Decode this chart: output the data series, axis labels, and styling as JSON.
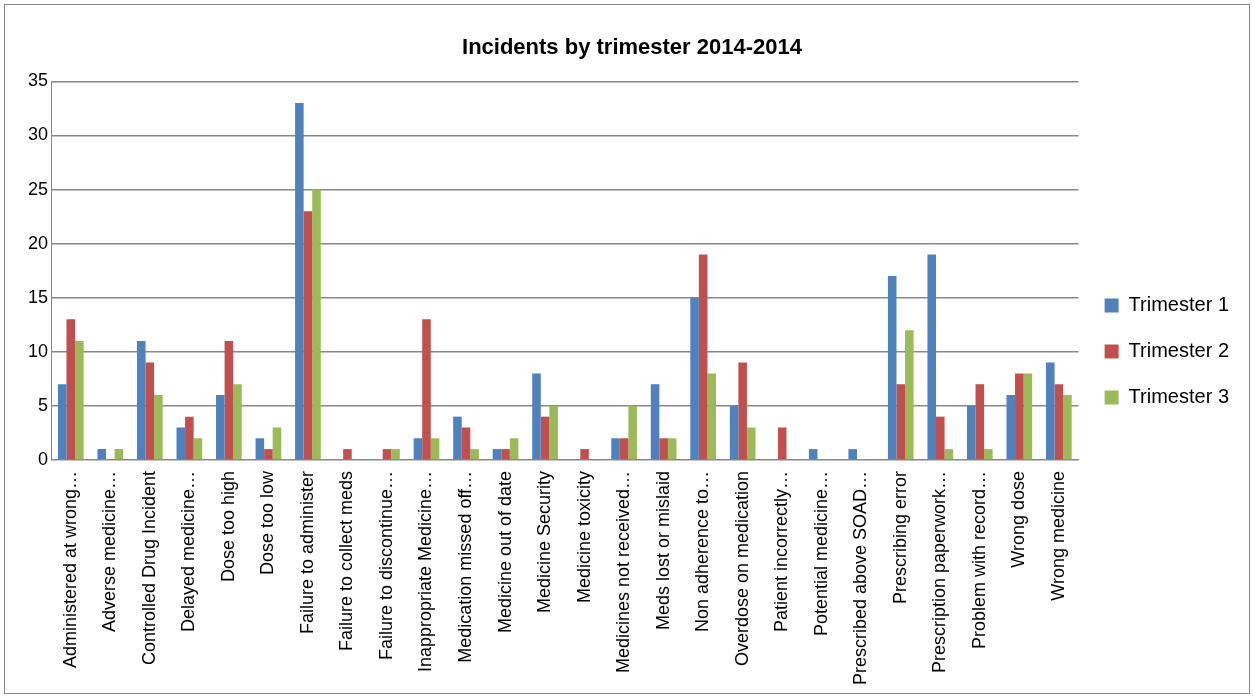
{
  "chart_data": {
    "type": "bar",
    "title": "Incidents by trimester 2014-2014",
    "categories": [
      "Administered at wrong…",
      "Adverse medicine…",
      "Controlled Drug Incident",
      "Delayed medicine…",
      "Dose too high",
      "Dose too low",
      "Failure to administer",
      "Failure to collect meds",
      "Failure to discontinue…",
      "Inappropriate Medicine…",
      "Medication missed off…",
      "Medicine out of date",
      "Medicine Security",
      "Medicine toxicity",
      "Medicines not received…",
      "Meds lost or mislaid",
      "Non adherence to…",
      "Overdose on medication",
      "Patient incorrectly…",
      "Potential medicine…",
      "Prescribed above SOAD…",
      "Prescribing error",
      "Prescription paperwork…",
      "Problem with record…",
      "Wrong dose",
      "Wrong medicine"
    ],
    "series": [
      {
        "name": "Trimester 1",
        "color": "#4f81bd",
        "values": [
          7,
          1,
          11,
          3,
          6,
          2,
          33,
          0,
          0,
          2,
          4,
          1,
          8,
          0,
          2,
          7,
          15,
          5,
          0,
          1,
          1,
          17,
          19,
          5,
          6,
          9
        ]
      },
      {
        "name": "Trimester 2",
        "color": "#c0504d",
        "values": [
          13,
          0,
          9,
          4,
          11,
          1,
          23,
          1,
          1,
          13,
          3,
          1,
          4,
          1,
          2,
          2,
          19,
          9,
          3,
          0,
          0,
          7,
          4,
          7,
          8,
          7
        ]
      },
      {
        "name": "Trimester 3",
        "color": "#9bbb59",
        "values": [
          11,
          1,
          6,
          2,
          7,
          3,
          25,
          0,
          1,
          2,
          1,
          2,
          5,
          0,
          5,
          2,
          8,
          3,
          0,
          0,
          0,
          12,
          1,
          1,
          8,
          6
        ]
      }
    ],
    "ylim": [
      0,
      35
    ],
    "yticks": [
      0,
      5,
      10,
      15,
      20,
      25,
      30,
      35
    ],
    "grid": "y",
    "legend": "right"
  }
}
